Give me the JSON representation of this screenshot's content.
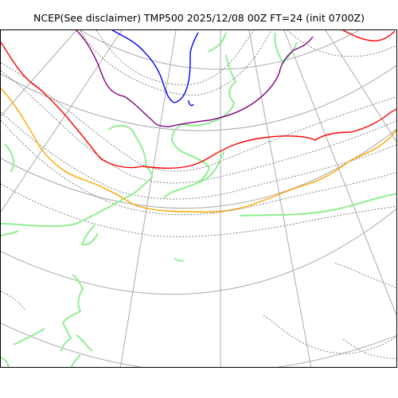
{
  "chart": {
    "title": "NCEP(See disclaimer) TMP500 2025/12/08 00Z FT=24 (init 0700Z)"
  },
  "colors": {
    "grid": "#aaaaaa",
    "coast": "#90ee90",
    "isotherm": "#666666",
    "contour_purple": "#800080",
    "contour_blue": "#0000ff",
    "contour_red": "#ff0000",
    "contour_orange": "#ffa500"
  },
  "legend_items": [],
  "layers": [
    "graticule-lines",
    "coastline",
    "temperature-isotherms",
    "highlighted-isotherms"
  ]
}
